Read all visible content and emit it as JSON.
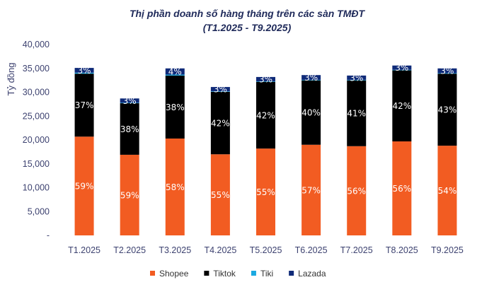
{
  "chart_data": {
    "type": "bar",
    "stacked": true,
    "title": "Thị phần doanh số hàng tháng trên các sàn TMĐT",
    "subtitle": "(T1.2025 - T9.2025)",
    "xlabel": "",
    "ylabel": "Tỷ đồng",
    "ylim": [
      0,
      40000
    ],
    "yticks": [
      "-",
      "5,000",
      "10,000",
      "15,000",
      "20,000",
      "25,000",
      "30,000",
      "35,000",
      "40,000"
    ],
    "grid": false,
    "legend_position": "bottom",
    "categories": [
      "T1.2025",
      "T2.2025",
      "T3.2025",
      "T4.2025",
      "T5.2025",
      "T6.2025",
      "T7.2025",
      "T8.2025",
      "T9.2025"
    ],
    "series": [
      {
        "name": "Shopee",
        "color": "#f25c22",
        "values": [
          20700,
          16900,
          20300,
          17000,
          18200,
          19000,
          18700,
          19700,
          18800
        ],
        "labels": [
          "59%",
          "59%",
          "58%",
          "55%",
          "55%",
          "57%",
          "56%",
          "56%",
          "54%"
        ]
      },
      {
        "name": "Tiktok",
        "color": "#000000",
        "values": [
          13200,
          10800,
          13200,
          13100,
          14000,
          13500,
          13800,
          14900,
          15100
        ],
        "labels": [
          "37%",
          "38%",
          "38%",
          "42%",
          "42%",
          "40%",
          "41%",
          "42%",
          "43%"
        ]
      },
      {
        "name": "Tiki",
        "color": "#1aa9e1",
        "values": [
          200,
          100,
          200,
          100,
          100,
          100,
          100,
          100,
          100
        ],
        "labels": [
          "",
          "",
          "",
          "",
          "",
          "",
          "",
          "",
          ""
        ]
      },
      {
        "name": "Lazada",
        "color": "#0f2a78",
        "values": [
          1000,
          900,
          1300,
          900,
          900,
          1000,
          900,
          900,
          1000
        ],
        "labels": [
          "3%",
          "3%",
          "4%",
          "3%",
          "3%",
          "3%",
          "3%",
          "3%",
          "3%"
        ]
      }
    ]
  }
}
